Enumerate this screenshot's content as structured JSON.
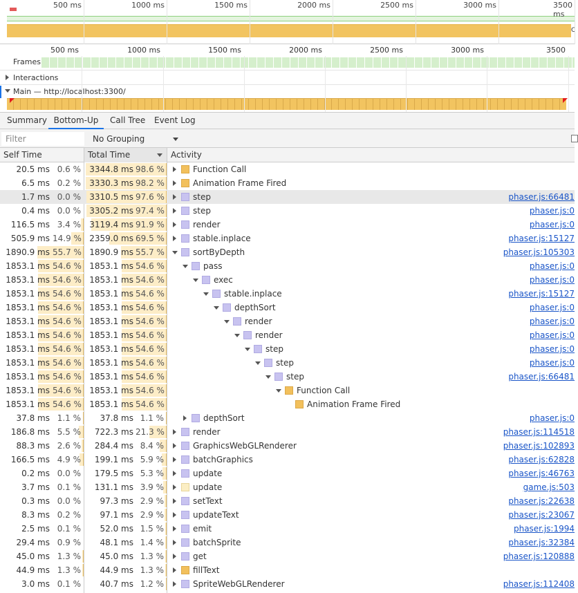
{
  "overview": {
    "ticks": [
      "500 ms",
      "1000 ms",
      "1500 ms",
      "2000 ms",
      "2500 ms",
      "3000 ms",
      "3500 ms"
    ],
    "side_label": "C",
    "colors": {
      "fps": "#8fd17f",
      "cpu": "#f2c460",
      "red": "#e35959"
    }
  },
  "ruler": {
    "ticks": [
      "500 ms",
      "1000 ms",
      "1500 ms",
      "2000 ms",
      "2500 ms",
      "3000 ms",
      "3500 ms"
    ]
  },
  "tracks": {
    "frames": "Frames",
    "interactions": "Interactions",
    "main": "Main — http://localhost:3300/"
  },
  "tabs": [
    {
      "label": "Summary",
      "active": false
    },
    {
      "label": "Bottom-Up",
      "active": true
    },
    {
      "label": "Call Tree",
      "active": false
    },
    {
      "label": "Event Log",
      "active": false
    }
  ],
  "toolbar": {
    "filter_placeholder": "Filter",
    "grouping_value": "No Grouping"
  },
  "columns": {
    "self_time": "Self Time",
    "total_time": "Total Time",
    "activity": "Activity"
  },
  "rows": [
    {
      "self_ms": "20.5 ms",
      "self_pct": "0.6 %",
      "self_frac": 0.006,
      "total_ms": "3344.8 ms",
      "total_pct": "98.6 %",
      "total_frac": 0.986,
      "depth": 0,
      "expander": "right",
      "cat": "script",
      "name": "Function Call",
      "url": ""
    },
    {
      "self_ms": "6.5 ms",
      "self_pct": "0.2 %",
      "self_frac": 0.002,
      "total_ms": "3330.3 ms",
      "total_pct": "98.2 %",
      "total_frac": 0.982,
      "depth": 0,
      "expander": "right",
      "cat": "script",
      "name": "Animation Frame Fired",
      "url": ""
    },
    {
      "self_ms": "1.7 ms",
      "self_pct": "0.0 %",
      "self_frac": 0.0,
      "total_ms": "3310.5 ms",
      "total_pct": "97.6 %",
      "total_frac": 0.976,
      "depth": 0,
      "expander": "right",
      "cat": "render",
      "name": "step",
      "url": "phaser.js:66481",
      "selected": true
    },
    {
      "self_ms": "0.4 ms",
      "self_pct": "0.0 %",
      "self_frac": 0.0,
      "total_ms": "3305.2 ms",
      "total_pct": "97.4 %",
      "total_frac": 0.974,
      "depth": 0,
      "expander": "right",
      "cat": "render",
      "name": "step",
      "url": "phaser.js:0"
    },
    {
      "self_ms": "116.5 ms",
      "self_pct": "3.4 %",
      "self_frac": 0.034,
      "total_ms": "3119.4 ms",
      "total_pct": "91.9 %",
      "total_frac": 0.919,
      "depth": 0,
      "expander": "right",
      "cat": "render",
      "name": "render",
      "url": "phaser.js:0"
    },
    {
      "self_ms": "505.9 ms",
      "self_pct": "14.9 %",
      "self_frac": 0.149,
      "total_ms": "2359.0 ms",
      "total_pct": "69.5 %",
      "total_frac": 0.695,
      "depth": 0,
      "expander": "right",
      "cat": "render",
      "name": "stable.inplace",
      "url": "phaser.js:15127"
    },
    {
      "self_ms": "1890.9 ms",
      "self_pct": "55.7 %",
      "self_frac": 0.557,
      "total_ms": "1890.9 ms",
      "total_pct": "55.7 %",
      "total_frac": 0.557,
      "depth": 0,
      "expander": "down",
      "cat": "render",
      "name": "sortByDepth",
      "url": "phaser.js:105303"
    },
    {
      "self_ms": "1853.1 ms",
      "self_pct": "54.6 %",
      "self_frac": 0.546,
      "total_ms": "1853.1 ms",
      "total_pct": "54.6 %",
      "total_frac": 0.546,
      "depth": 1,
      "expander": "down",
      "cat": "render",
      "name": "pass",
      "url": "phaser.js:0"
    },
    {
      "self_ms": "1853.1 ms",
      "self_pct": "54.6 %",
      "self_frac": 0.546,
      "total_ms": "1853.1 ms",
      "total_pct": "54.6 %",
      "total_frac": 0.546,
      "depth": 2,
      "expander": "down",
      "cat": "render",
      "name": "exec",
      "url": "phaser.js:0"
    },
    {
      "self_ms": "1853.1 ms",
      "self_pct": "54.6 %",
      "self_frac": 0.546,
      "total_ms": "1853.1 ms",
      "total_pct": "54.6 %",
      "total_frac": 0.546,
      "depth": 3,
      "expander": "down",
      "cat": "render",
      "name": "stable.inplace",
      "url": "phaser.js:15127"
    },
    {
      "self_ms": "1853.1 ms",
      "self_pct": "54.6 %",
      "self_frac": 0.546,
      "total_ms": "1853.1 ms",
      "total_pct": "54.6 %",
      "total_frac": 0.546,
      "depth": 4,
      "expander": "down",
      "cat": "render",
      "name": "depthSort",
      "url": "phaser.js:0"
    },
    {
      "self_ms": "1853.1 ms",
      "self_pct": "54.6 %",
      "self_frac": 0.546,
      "total_ms": "1853.1 ms",
      "total_pct": "54.6 %",
      "total_frac": 0.546,
      "depth": 5,
      "expander": "down",
      "cat": "render",
      "name": "render",
      "url": "phaser.js:0"
    },
    {
      "self_ms": "1853.1 ms",
      "self_pct": "54.6 %",
      "self_frac": 0.546,
      "total_ms": "1853.1 ms",
      "total_pct": "54.6 %",
      "total_frac": 0.546,
      "depth": 6,
      "expander": "down",
      "cat": "render",
      "name": "render",
      "url": "phaser.js:0"
    },
    {
      "self_ms": "1853.1 ms",
      "self_pct": "54.6 %",
      "self_frac": 0.546,
      "total_ms": "1853.1 ms",
      "total_pct": "54.6 %",
      "total_frac": 0.546,
      "depth": 7,
      "expander": "down",
      "cat": "render",
      "name": "step",
      "url": "phaser.js:0"
    },
    {
      "self_ms": "1853.1 ms",
      "self_pct": "54.6 %",
      "self_frac": 0.546,
      "total_ms": "1853.1 ms",
      "total_pct": "54.6 %",
      "total_frac": 0.546,
      "depth": 8,
      "expander": "down",
      "cat": "render",
      "name": "step",
      "url": "phaser.js:0"
    },
    {
      "self_ms": "1853.1 ms",
      "self_pct": "54.6 %",
      "self_frac": 0.546,
      "total_ms": "1853.1 ms",
      "total_pct": "54.6 %",
      "total_frac": 0.546,
      "depth": 9,
      "expander": "down",
      "cat": "render",
      "name": "step",
      "url": "phaser.js:66481"
    },
    {
      "self_ms": "1853.1 ms",
      "self_pct": "54.6 %",
      "self_frac": 0.546,
      "total_ms": "1853.1 ms",
      "total_pct": "54.6 %",
      "total_frac": 0.546,
      "depth": 10,
      "expander": "down",
      "cat": "script",
      "name": "Function Call",
      "url": ""
    },
    {
      "self_ms": "1853.1 ms",
      "self_pct": "54.6 %",
      "self_frac": 0.546,
      "total_ms": "1853.1 ms",
      "total_pct": "54.6 %",
      "total_frac": 0.546,
      "depth": 11,
      "expander": "none",
      "cat": "script",
      "name": "Animation Frame Fired",
      "url": ""
    },
    {
      "self_ms": "37.8 ms",
      "self_pct": "1.1 %",
      "self_frac": 0.011,
      "total_ms": "37.8 ms",
      "total_pct": "1.1 %",
      "total_frac": 0.011,
      "depth": 1,
      "expander": "right",
      "cat": "render",
      "name": "depthSort",
      "url": "phaser.js:0"
    },
    {
      "self_ms": "186.8 ms",
      "self_pct": "5.5 %",
      "self_frac": 0.055,
      "total_ms": "722.3 ms",
      "total_pct": "21.3 %",
      "total_frac": 0.213,
      "depth": 0,
      "expander": "right",
      "cat": "render",
      "name": "render",
      "url": "phaser.js:114518"
    },
    {
      "self_ms": "88.3 ms",
      "self_pct": "2.6 %",
      "self_frac": 0.026,
      "total_ms": "284.4 ms",
      "total_pct": "8.4 %",
      "total_frac": 0.084,
      "depth": 0,
      "expander": "right",
      "cat": "render",
      "name": "GraphicsWebGLRenderer",
      "url": "phaser.js:102893"
    },
    {
      "self_ms": "166.5 ms",
      "self_pct": "4.9 %",
      "self_frac": 0.049,
      "total_ms": "199.1 ms",
      "total_pct": "5.9 %",
      "total_frac": 0.059,
      "depth": 0,
      "expander": "right",
      "cat": "render",
      "name": "batchGraphics",
      "url": "phaser.js:62828"
    },
    {
      "self_ms": "0.2 ms",
      "self_pct": "0.0 %",
      "self_frac": 0.0,
      "total_ms": "179.5 ms",
      "total_pct": "5.3 %",
      "total_frac": 0.053,
      "depth": 0,
      "expander": "right",
      "cat": "render",
      "name": "update",
      "url": "phaser.js:46763"
    },
    {
      "self_ms": "3.7 ms",
      "self_pct": "0.1 %",
      "self_frac": 0.001,
      "total_ms": "131.1 ms",
      "total_pct": "3.9 %",
      "total_frac": 0.039,
      "depth": 0,
      "expander": "right",
      "cat": "paint",
      "name": "update",
      "url": "game.js:503"
    },
    {
      "self_ms": "0.3 ms",
      "self_pct": "0.0 %",
      "self_frac": 0.0,
      "total_ms": "97.3 ms",
      "total_pct": "2.9 %",
      "total_frac": 0.029,
      "depth": 0,
      "expander": "right",
      "cat": "render",
      "name": "setText",
      "url": "phaser.js:22638"
    },
    {
      "self_ms": "8.3 ms",
      "self_pct": "0.2 %",
      "self_frac": 0.002,
      "total_ms": "97.1 ms",
      "total_pct": "2.9 %",
      "total_frac": 0.029,
      "depth": 0,
      "expander": "right",
      "cat": "render",
      "name": "updateText",
      "url": "phaser.js:23067"
    },
    {
      "self_ms": "2.5 ms",
      "self_pct": "0.1 %",
      "self_frac": 0.001,
      "total_ms": "52.0 ms",
      "total_pct": "1.5 %",
      "total_frac": 0.015,
      "depth": 0,
      "expander": "right",
      "cat": "render",
      "name": "emit",
      "url": "phaser.js:1994"
    },
    {
      "self_ms": "29.4 ms",
      "self_pct": "0.9 %",
      "self_frac": 0.009,
      "total_ms": "48.1 ms",
      "total_pct": "1.4 %",
      "total_frac": 0.014,
      "depth": 0,
      "expander": "right",
      "cat": "render",
      "name": "batchSprite",
      "url": "phaser.js:32384"
    },
    {
      "self_ms": "45.0 ms",
      "self_pct": "1.3 %",
      "self_frac": 0.013,
      "total_ms": "45.0 ms",
      "total_pct": "1.3 %",
      "total_frac": 0.013,
      "depth": 0,
      "expander": "right",
      "cat": "render",
      "name": "get",
      "url": "phaser.js:120888"
    },
    {
      "self_ms": "44.9 ms",
      "self_pct": "1.3 %",
      "self_frac": 0.013,
      "total_ms": "44.9 ms",
      "total_pct": "1.3 %",
      "total_frac": 0.013,
      "depth": 0,
      "expander": "right",
      "cat": "script",
      "name": "fillText",
      "url": ""
    },
    {
      "self_ms": "3.0 ms",
      "self_pct": "0.1 %",
      "self_frac": 0.001,
      "total_ms": "40.7 ms",
      "total_pct": "1.2 %",
      "total_frac": 0.012,
      "depth": 0,
      "expander": "right",
      "cat": "render",
      "name": "SpriteWebGLRenderer",
      "url": "phaser.js:112408"
    }
  ]
}
